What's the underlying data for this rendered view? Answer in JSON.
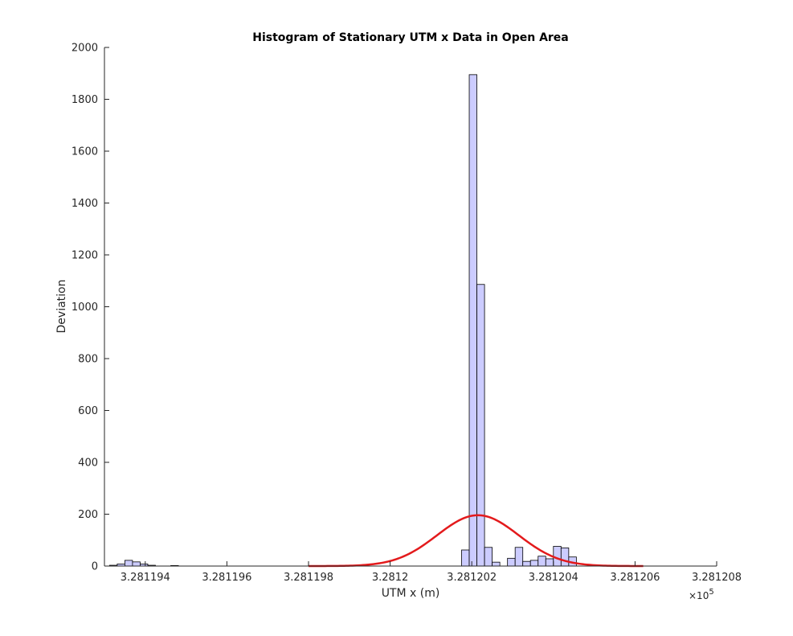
{
  "chart_data": {
    "type": "bar",
    "title": "Histogram of Stationary UTM x Data in Open Area",
    "xlabel": "UTM x (m)",
    "ylabel": "Deviation",
    "x_multiplier": "×10",
    "x_multiplier_exponent": "5",
    "xlim": [
      328119.3,
      328120.8
    ],
    "ylim": [
      0,
      2000
    ],
    "x_ticks": [
      {
        "value": 328119.4,
        "label": "3.281194"
      },
      {
        "value": 328119.6,
        "label": "3.281196"
      },
      {
        "value": 328119.8,
        "label": "3.281198"
      },
      {
        "value": 328120.0,
        "label": "3.2812"
      },
      {
        "value": 328120.2,
        "label": "3.281202"
      },
      {
        "value": 328120.4,
        "label": "3.281204"
      },
      {
        "value": 328120.6,
        "label": "3.281206"
      },
      {
        "value": 328120.8,
        "label": "3.281208"
      }
    ],
    "y_ticks": [
      {
        "value": 0,
        "label": "0"
      },
      {
        "value": 200,
        "label": "200"
      },
      {
        "value": 400,
        "label": "400"
      },
      {
        "value": 600,
        "label": "600"
      },
      {
        "value": 800,
        "label": "800"
      },
      {
        "value": 1000,
        "label": "1000"
      },
      {
        "value": 1200,
        "label": "1200"
      },
      {
        "value": 1400,
        "label": "1400"
      },
      {
        "value": 1600,
        "label": "1600"
      },
      {
        "value": 1800,
        "label": "1800"
      },
      {
        "value": 2000,
        "label": "2000"
      }
    ],
    "bin_width": 0.01875,
    "bins": [
      {
        "x0": 328119.3125,
        "count": 3
      },
      {
        "x0": 328119.33125,
        "count": 8
      },
      {
        "x0": 328119.35,
        "count": 22
      },
      {
        "x0": 328119.36875,
        "count": 16
      },
      {
        "x0": 328119.3875,
        "count": 8
      },
      {
        "x0": 328119.40625,
        "count": 3
      },
      {
        "x0": 328119.4625,
        "count": 2
      },
      {
        "x0": 328120.175,
        "count": 62
      },
      {
        "x0": 328120.19375,
        "count": 1895
      },
      {
        "x0": 328120.2125,
        "count": 1086
      },
      {
        "x0": 328120.23125,
        "count": 72
      },
      {
        "x0": 328120.25,
        "count": 15
      },
      {
        "x0": 328120.2875,
        "count": 30
      },
      {
        "x0": 328120.30625,
        "count": 72
      },
      {
        "x0": 328120.325,
        "count": 18
      },
      {
        "x0": 328120.34375,
        "count": 22
      },
      {
        "x0": 328120.3625,
        "count": 38
      },
      {
        "x0": 328120.38125,
        "count": 28
      },
      {
        "x0": 328120.4,
        "count": 76
      },
      {
        "x0": 328120.41875,
        "count": 70
      },
      {
        "x0": 328120.4375,
        "count": 35
      }
    ],
    "fit_curve": {
      "type": "normal",
      "mean": 328120.215,
      "sigma": 0.1,
      "peak": 196,
      "x_range": [
        328119.8,
        328120.62
      ]
    },
    "colors": {
      "bar_fill": "#ccccff",
      "bar_edge": "#000000",
      "curve": "#e31a1c",
      "axis": "#262626"
    },
    "grid": false,
    "legend": "none"
  }
}
